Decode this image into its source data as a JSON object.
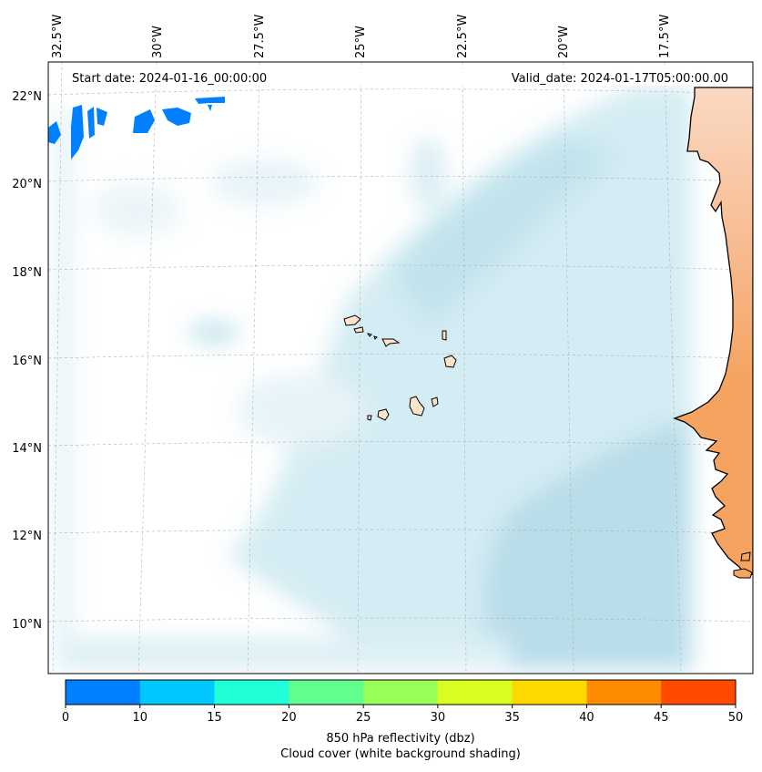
{
  "map": {
    "start_date": "Start date: 2024-01-16_00:00:00",
    "valid_date": "Valid_date: 2024-01-17T05:00:00.00",
    "lon_labels": [
      "32.5°W",
      "30°W",
      "27.5°W",
      "25°W",
      "22.5°W",
      "20°W",
      "17.5°W"
    ],
    "lat_labels": [
      "22°N",
      "20°N",
      "18°N",
      "16°N",
      "14°N",
      "12°N",
      "10°N"
    ],
    "colors": {
      "land": "#f4a460",
      "land_edge": "#000000",
      "cloud": "#add8e6",
      "grid": "#b0b0b0"
    }
  },
  "colorbar": {
    "ticks": [
      "0",
      "10",
      "15",
      "20",
      "25",
      "30",
      "35",
      "40",
      "45",
      "50"
    ],
    "colors": [
      "#0080ff",
      "#00c8ff",
      "#20ffd8",
      "#60ff90",
      "#98ff58",
      "#d8ff20",
      "#ffd800",
      "#ff8c00",
      "#ff4a00"
    ],
    "label_line1": "850 hPa reflectivity (dbz)",
    "label_line2": "Cloud cover (white background shading)"
  }
}
